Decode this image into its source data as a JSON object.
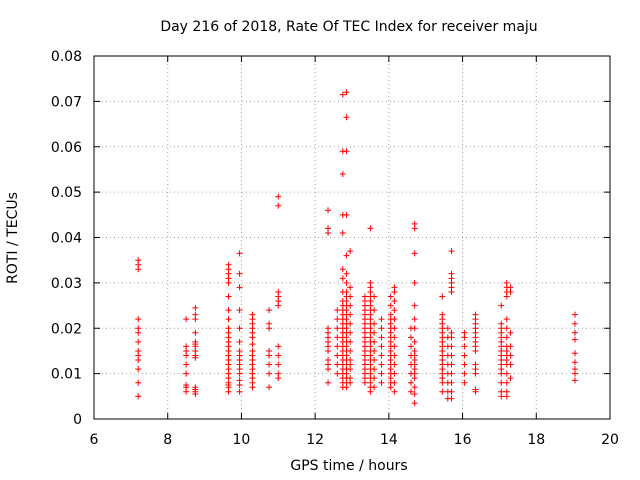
{
  "chart_data": {
    "type": "scatter",
    "title": "Day 216 of 2018, Rate Of TEC Index for receiver maju",
    "xlabel": "GPS time / hours",
    "ylabel": "ROTI / TECUs",
    "xlim": [
      6,
      20
    ],
    "ylim": [
      0,
      0.08
    ],
    "xticks": [
      "6",
      "8",
      "10",
      "12",
      "14",
      "16",
      "18",
      "20"
    ],
    "yticks": [
      "0",
      "0.01",
      "0.02",
      "0.03",
      "0.04",
      "0.05",
      "0.06",
      "0.07",
      "0.08"
    ],
    "grid": true,
    "marker": "+",
    "series_color": "#ff0000",
    "clusters": [
      {
        "x": 7.2,
        "y": [
          0.005,
          0.008,
          0.011,
          0.013,
          0.014,
          0.015,
          0.017,
          0.019,
          0.02,
          0.022,
          0.033,
          0.034,
          0.035
        ]
      },
      {
        "x": 8.5,
        "y": [
          0.006,
          0.007,
          0.0075,
          0.01,
          0.012,
          0.014,
          0.015,
          0.016,
          0.022
        ]
      },
      {
        "x": 8.75,
        "y": [
          0.0055,
          0.006,
          0.0065,
          0.007,
          0.0135,
          0.014,
          0.015,
          0.016,
          0.0165,
          0.017,
          0.019,
          0.022,
          0.023,
          0.0245
        ]
      },
      {
        "x": 9.65,
        "y": [
          0.006,
          0.007,
          0.0075,
          0.008,
          0.009,
          0.01,
          0.011,
          0.012,
          0.013,
          0.014,
          0.015,
          0.016,
          0.017,
          0.018,
          0.019,
          0.02,
          0.022,
          0.024,
          0.027,
          0.03,
          0.031,
          0.032,
          0.033,
          0.034
        ]
      },
      {
        "x": 9.95,
        "y": [
          0.006,
          0.0075,
          0.0085,
          0.01,
          0.011,
          0.012,
          0.013,
          0.014,
          0.015,
          0.017,
          0.02,
          0.024,
          0.029,
          0.032,
          0.0365
        ]
      },
      {
        "x": 10.3,
        "y": [
          0.007,
          0.008,
          0.009,
          0.01,
          0.011,
          0.012,
          0.013,
          0.014,
          0.015,
          0.0165,
          0.018,
          0.019,
          0.02,
          0.021,
          0.022,
          0.023
        ]
      },
      {
        "x": 10.75,
        "y": [
          0.007,
          0.01,
          0.012,
          0.014,
          0.015,
          0.02,
          0.021,
          0.024
        ]
      },
      {
        "x": 11.0,
        "y": [
          0.009,
          0.01,
          0.012,
          0.014,
          0.016,
          0.025,
          0.026,
          0.027,
          0.028,
          0.047,
          0.049
        ]
      },
      {
        "x": 12.35,
        "y": [
          0.008,
          0.011,
          0.012,
          0.013,
          0.015,
          0.016,
          0.017,
          0.018,
          0.019,
          0.02,
          0.041,
          0.042,
          0.046
        ]
      },
      {
        "x": 12.6,
        "y": [
          0.01,
          0.012,
          0.014,
          0.016,
          0.018,
          0.02,
          0.022,
          0.024
        ]
      },
      {
        "x": 12.75,
        "y": [
          0.007,
          0.008,
          0.009,
          0.01,
          0.011,
          0.012,
          0.013,
          0.014,
          0.015,
          0.016,
          0.017,
          0.018,
          0.019,
          0.02,
          0.021,
          0.022,
          0.023,
          0.024,
          0.025,
          0.026,
          0.028,
          0.031,
          0.033,
          0.041,
          0.045,
          0.054,
          0.059,
          0.0715
        ]
      },
      {
        "x": 12.85,
        "y": [
          0.007,
          0.008,
          0.009,
          0.01,
          0.011,
          0.012,
          0.013,
          0.014,
          0.015,
          0.016,
          0.017,
          0.018,
          0.019,
          0.02,
          0.021,
          0.022,
          0.023,
          0.024,
          0.025,
          0.026,
          0.027,
          0.028,
          0.03,
          0.032,
          0.036,
          0.045,
          0.059,
          0.0665,
          0.072
        ]
      },
      {
        "x": 12.95,
        "y": [
          0.008,
          0.009,
          0.011,
          0.012,
          0.013,
          0.015,
          0.017,
          0.019,
          0.021,
          0.023,
          0.025,
          0.027,
          0.029,
          0.037
        ]
      },
      {
        "x": 13.35,
        "y": [
          0.008,
          0.009,
          0.01,
          0.011,
          0.012,
          0.013,
          0.014,
          0.015,
          0.016,
          0.017,
          0.018,
          0.019,
          0.02,
          0.021,
          0.022,
          0.023,
          0.024,
          0.025,
          0.026,
          0.027
        ]
      },
      {
        "x": 13.5,
        "y": [
          0.006,
          0.007,
          0.008,
          0.009,
          0.01,
          0.011,
          0.012,
          0.013,
          0.014,
          0.015,
          0.016,
          0.017,
          0.018,
          0.019,
          0.02,
          0.021,
          0.022,
          0.023,
          0.024,
          0.025,
          0.026,
          0.027,
          0.028,
          0.029,
          0.03,
          0.042
        ]
      },
      {
        "x": 13.6,
        "y": [
          0.007,
          0.009,
          0.011,
          0.013,
          0.015,
          0.017,
          0.019,
          0.021,
          0.024,
          0.027
        ]
      },
      {
        "x": 13.8,
        "y": [
          0.008,
          0.01,
          0.012,
          0.014,
          0.016,
          0.018,
          0.02,
          0.022
        ]
      },
      {
        "x": 14.05,
        "y": [
          0.007,
          0.008,
          0.009,
          0.01,
          0.011,
          0.012,
          0.013,
          0.014,
          0.015,
          0.016,
          0.017,
          0.018,
          0.019,
          0.02,
          0.021,
          0.022,
          0.023,
          0.025,
          0.027
        ]
      },
      {
        "x": 14.15,
        "y": [
          0.006,
          0.008,
          0.01,
          0.012,
          0.014,
          0.016,
          0.018,
          0.02,
          0.022,
          0.024,
          0.026,
          0.028,
          0.029
        ]
      },
      {
        "x": 14.6,
        "y": [
          0.006,
          0.008,
          0.01,
          0.012,
          0.014,
          0.016,
          0.018,
          0.02
        ]
      },
      {
        "x": 14.7,
        "y": [
          0.0035,
          0.0055,
          0.007,
          0.009,
          0.01,
          0.011,
          0.012,
          0.013,
          0.014,
          0.015,
          0.017,
          0.02,
          0.022,
          0.025,
          0.03,
          0.0365,
          0.042,
          0.043
        ]
      },
      {
        "x": 15.45,
        "y": [
          0.006,
          0.008,
          0.009,
          0.01,
          0.011,
          0.012,
          0.013,
          0.014,
          0.015,
          0.016,
          0.017,
          0.018,
          0.019,
          0.02,
          0.021,
          0.022,
          0.023,
          0.027
        ]
      },
      {
        "x": 15.6,
        "y": [
          0.0045,
          0.006,
          0.008,
          0.01,
          0.012,
          0.014,
          0.016,
          0.018,
          0.02
        ]
      },
      {
        "x": 15.7,
        "y": [
          0.0045,
          0.006,
          0.008,
          0.01,
          0.012,
          0.014,
          0.016,
          0.018,
          0.019,
          0.028,
          0.029,
          0.03,
          0.031,
          0.032,
          0.037
        ]
      },
      {
        "x": 16.05,
        "y": [
          0.008,
          0.01,
          0.012,
          0.014,
          0.016,
          0.018,
          0.019
        ]
      },
      {
        "x": 16.35,
        "y": [
          0.006,
          0.0065,
          0.01,
          0.011,
          0.012,
          0.015,
          0.016,
          0.017,
          0.018,
          0.019,
          0.02,
          0.021,
          0.022,
          0.023
        ]
      },
      {
        "x": 17.05,
        "y": [
          0.005,
          0.006,
          0.008,
          0.01,
          0.011,
          0.012,
          0.013,
          0.014,
          0.015,
          0.016,
          0.017,
          0.018,
          0.019,
          0.02,
          0.021,
          0.025
        ]
      },
      {
        "x": 17.2,
        "y": [
          0.005,
          0.006,
          0.008,
          0.01,
          0.012,
          0.013,
          0.014,
          0.015,
          0.016,
          0.018,
          0.02,
          0.022,
          0.027,
          0.028,
          0.029,
          0.03
        ]
      },
      {
        "x": 17.3,
        "y": [
          0.009,
          0.012,
          0.014,
          0.016,
          0.019,
          0.028,
          0.029
        ]
      },
      {
        "x": 19.05,
        "y": [
          0.0085,
          0.01,
          0.011,
          0.0125,
          0.0145,
          0.0175,
          0.019,
          0.021,
          0.023
        ]
      }
    ]
  }
}
